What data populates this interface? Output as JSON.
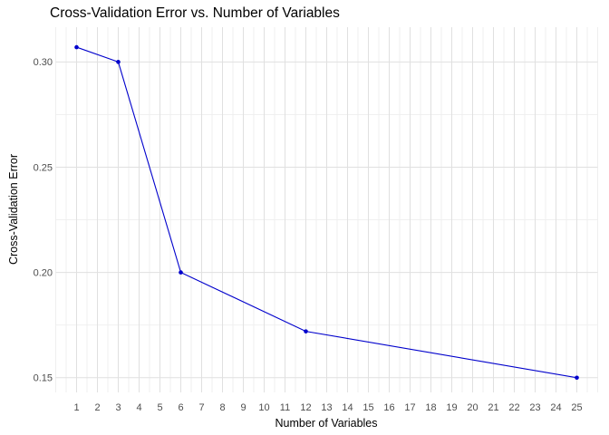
{
  "chart_data": {
    "type": "line",
    "title": "Cross-Validation Error vs. Number of Variables",
    "xlabel": "Number of Variables",
    "ylabel": "Cross-Validation Error",
    "x": [
      1,
      3,
      6,
      12,
      25
    ],
    "y": [
      0.307,
      0.3,
      0.2,
      0.172,
      0.15
    ],
    "x_ticks": [
      1,
      2,
      3,
      4,
      5,
      6,
      7,
      8,
      9,
      10,
      11,
      12,
      13,
      14,
      15,
      16,
      17,
      18,
      19,
      20,
      21,
      22,
      23,
      24,
      25
    ],
    "y_ticks": [
      0.15,
      0.2,
      0.25,
      0.3
    ],
    "y_tick_labels": [
      "0.15",
      "0.20",
      "0.25",
      "0.30"
    ],
    "xlim": [
      0,
      26
    ],
    "ylim": [
      0.143,
      0.3165
    ],
    "grid": "major and minor, no axis lines, no tick marks",
    "legend": "none",
    "marker": "filled-circle",
    "colors": {
      "series": "#0000CC",
      "grid_major": "#e0e0e0",
      "grid_minor": "#eeeeee",
      "tick_labels": "#4d4d4d",
      "titles": "#000000",
      "background": "#ffffff"
    }
  }
}
